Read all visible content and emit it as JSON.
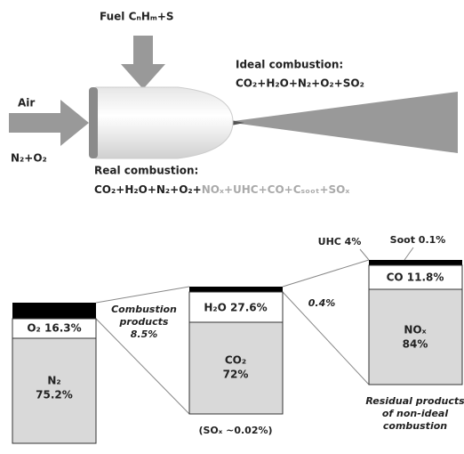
{
  "fuel": "Fuel CₙHₘ+S",
  "air": {
    "label": "Air",
    "formula": "N₂+O₂"
  },
  "ideal_combustion": {
    "label": "Ideal combustion:",
    "formula": "CO₂+H₂O+N₂+O₂+SO₂"
  },
  "real_combustion": {
    "label": "Real combustion:",
    "formula": "CO₂+H₂O+N₂+O₂+",
    "formula_nonideal": "NOₓ+UHC+CO+Cₛₒₒₜ+SOₓ"
  },
  "bars": [
    {
      "top": "O₂ 16.3%",
      "main": [
        "N₂",
        "75.2%"
      ]
    },
    {
      "top": "H₂O 27.6%",
      "main": [
        "CO₂",
        "72%"
      ]
    },
    {
      "top": "CO 11.8%",
      "main": [
        "NOₓ",
        "84%"
      ]
    }
  ],
  "labels": {
    "combustion_products": [
      "Combustion",
      "products",
      "8.5%"
    ],
    "sox": "(SOₓ ~0.02%)",
    "residual_share": "0.4%",
    "uhc": "UHC 4%",
    "soot": "Soot 0.1%",
    "residual": [
      "Residual products",
      "of non-ideal",
      "combustion"
    ]
  }
}
